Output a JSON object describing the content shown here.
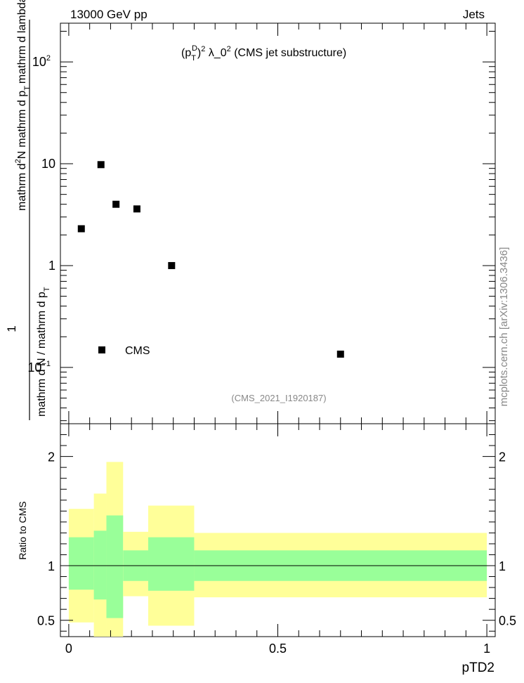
{
  "header": {
    "left": "13000 GeV pp",
    "right": "Jets"
  },
  "watermark": "mcplots.cern.ch [arXiv:1306.3436]",
  "chart_data": [
    {
      "type": "scatter",
      "panel": "main",
      "title_parts": {
        "p": "(p",
        "sub": "T",
        "sup": "D",
        "close": ")",
        "sq": "2",
        "lam": " λ_0",
        "rest": " (CMS jet substructure)"
      },
      "ylabel": {
        "numerator": "1",
        "denominator": "mathrm d N / mathrm d p",
        "denominator_sub": "T",
        "left_parts": [
          "mathrm d",
          "2",
          "N"
        ],
        "right_parts": [
          "mathrm d p",
          "T",
          "mathrm d lambda"
        ]
      },
      "yscale": "log",
      "ylim": [
        0.028,
        240
      ],
      "xlim": [
        -0.02,
        1.02
      ],
      "y_ticks": [
        {
          "value": 0.1,
          "base": "10",
          "exp": "−1"
        },
        {
          "value": 1,
          "base": "1",
          "exp": ""
        },
        {
          "value": 10,
          "base": "10",
          "exp": ""
        },
        {
          "value": 100,
          "base": "10",
          "exp": "2"
        }
      ],
      "series": [
        {
          "name": "CMS",
          "points": [
            {
              "x": 0.03,
              "y": 2.3
            },
            {
              "x": 0.077,
              "y": 9.8
            },
            {
              "x": 0.113,
              "y": 4.0
            },
            {
              "x": 0.163,
              "y": 3.6
            },
            {
              "x": 0.246,
              "y": 1.0
            },
            {
              "x": 0.65,
              "y": 0.135
            }
          ]
        }
      ],
      "legend": {
        "label": "CMS",
        "position": "bottom-left"
      },
      "annotation": "(CMS_2021_I1920187)"
    },
    {
      "type": "area",
      "panel": "ratio",
      "ylabel": "Ratio to CMS",
      "xlabel": "pTD2",
      "xlim": [
        -0.02,
        1.02
      ],
      "ylim": [
        0.35,
        2.3
      ],
      "x_ticks": [
        "0",
        "0.5",
        "1"
      ],
      "x_tick_values": [
        0,
        0.5,
        1
      ],
      "y_ticks": [
        "0.5",
        "1",
        "2"
      ],
      "y_tick_values": [
        0.5,
        1,
        2
      ],
      "reference_line": 1,
      "bands": [
        {
          "x0": 0.0,
          "x1": 0.06,
          "green": [
            0.78,
            1.26
          ],
          "yellow": [
            0.48,
            1.52
          ]
        },
        {
          "x0": 0.06,
          "x1": 0.09,
          "green": [
            0.69,
            1.32
          ],
          "yellow": [
            0.35,
            1.66
          ]
        },
        {
          "x0": 0.09,
          "x1": 0.13,
          "green": [
            0.52,
            1.46
          ],
          "yellow": [
            0.35,
            1.95
          ]
        },
        {
          "x0": 0.13,
          "x1": 0.19,
          "green": [
            0.86,
            1.14
          ],
          "yellow": [
            0.72,
            1.31
          ]
        },
        {
          "x0": 0.19,
          "x1": 0.3,
          "green": [
            0.77,
            1.26
          ],
          "yellow": [
            0.45,
            1.55
          ]
        },
        {
          "x0": 0.3,
          "x1": 1.0,
          "green": [
            0.86,
            1.14
          ],
          "yellow": [
            0.71,
            1.3
          ]
        }
      ]
    }
  ],
  "colors": {
    "green": "#99ff99",
    "yellow": "#ffff99",
    "marker": "#000000",
    "annotation": "#888888"
  }
}
